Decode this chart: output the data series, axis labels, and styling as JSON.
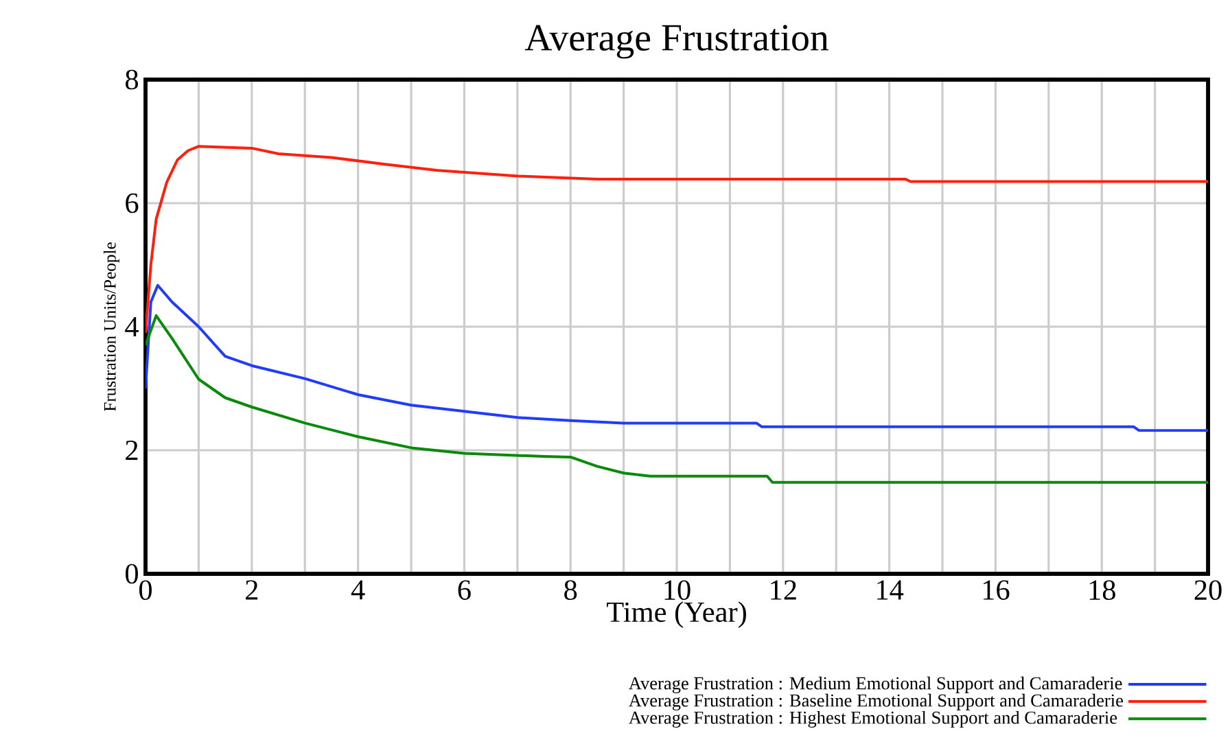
{
  "chart_data": {
    "type": "line",
    "title": "Average Frustration",
    "xlabel": "Time (Year)",
    "ylabel": "Frustration Units/People",
    "xlim": [
      0,
      20
    ],
    "ylim": [
      0,
      8
    ],
    "xticks": [
      0,
      2,
      4,
      6,
      8,
      10,
      12,
      14,
      16,
      18,
      20
    ],
    "yticks": [
      0,
      2,
      4,
      6,
      8
    ],
    "grid": true,
    "legend": "bottom",
    "marker": "none",
    "line_style": "solid",
    "series": [
      {
        "name": "Average Frustration : Medium Emotional Support and Camaraderie",
        "color": "#1f3cff",
        "x": [
          0,
          0.1,
          0.23,
          0.5,
          1,
          1.5,
          2,
          3,
          4,
          5,
          6,
          7,
          8,
          9,
          11.5,
          11.6,
          18.6,
          18.7,
          20
        ],
        "values": [
          3.0,
          4.4,
          4.67,
          4.4,
          4.0,
          3.52,
          3.37,
          3.16,
          2.9,
          2.73,
          2.63,
          2.53,
          2.48,
          2.44,
          2.44,
          2.38,
          2.38,
          2.32,
          2.32
        ]
      },
      {
        "name": "Average Frustration : Baseline Emotional Support and Camaraderie",
        "color": "#ff2010",
        "x": [
          0,
          0.1,
          0.2,
          0.4,
          0.6,
          0.8,
          1,
          2,
          2.5,
          3.5,
          4.5,
          5.5,
          7,
          8.5,
          14.3,
          14.4,
          20
        ],
        "values": [
          3.9,
          5.0,
          5.74,
          6.34,
          6.7,
          6.85,
          6.92,
          6.89,
          6.8,
          6.74,
          6.63,
          6.53,
          6.44,
          6.39,
          6.39,
          6.35,
          6.35
        ]
      },
      {
        "name": "Average Frustration : Highest Emotional Support and Camaraderie",
        "color": "#0a8a0a",
        "x": [
          0,
          0.2,
          0.5,
          1,
          1.5,
          2,
          3,
          4,
          5,
          6,
          7.5,
          8,
          8.5,
          9,
          9.5,
          11.7,
          11.8,
          20
        ],
        "values": [
          3.7,
          4.18,
          3.81,
          3.15,
          2.85,
          2.7,
          2.44,
          2.22,
          2.04,
          1.95,
          1.9,
          1.89,
          1.74,
          1.63,
          1.58,
          1.58,
          1.48,
          1.48
        ]
      }
    ]
  }
}
